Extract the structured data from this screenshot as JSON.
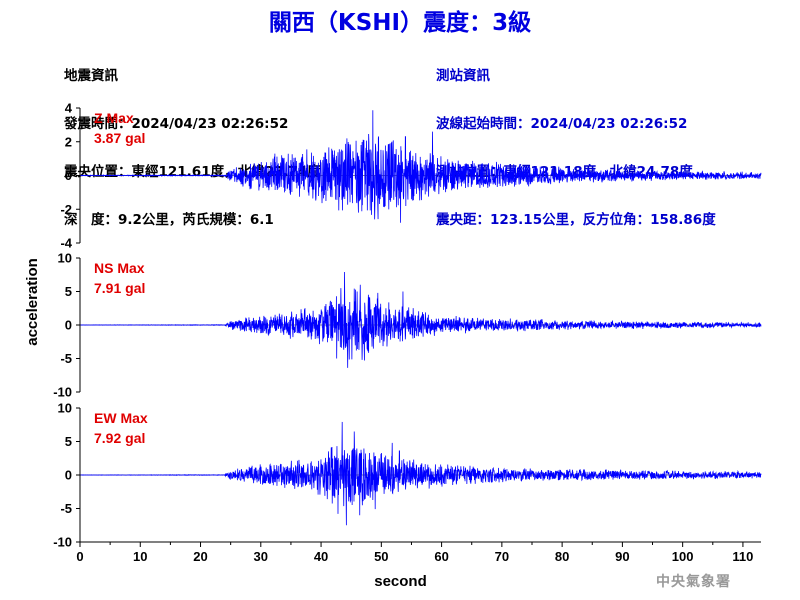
{
  "header": {
    "title": "關西（KSHI）震度：3級"
  },
  "quake_info": {
    "heading": "地震資訊",
    "time": "發震時間：2024/04/23 02:26:52",
    "epicenter": "震央位置：東經121.61度，北緯23.74度",
    "depth_mag": "深　度：9.2公里，芮氏規模：6.1"
  },
  "station_info": {
    "heading": "測站資訊",
    "wave_start": "波線起始時間：2024/04/23 02:26:52",
    "location": "測站位置：東經121.18度，北緯24.78度",
    "distance": "震央距：123.15公里，反方位角：158.86度"
  },
  "footer": {
    "agency": "中央氣象署"
  },
  "colors": {
    "title": "#0000e0",
    "trace": "#0000ff",
    "max_label": "#e00000"
  },
  "chart_data": {
    "type": "line",
    "xlabel": "second",
    "ylabel": "acceleration",
    "xlim": [
      0,
      113
    ],
    "x_ticks": [
      0,
      10,
      20,
      30,
      40,
      50,
      60,
      70,
      80,
      90,
      100,
      110
    ],
    "grid": false,
    "panels": [
      {
        "component": "Z",
        "max_label": "Z Max",
        "max_value": "3.87 gal",
        "peak": 3.87,
        "ylim": [
          -4,
          4
        ],
        "y_ticks": [
          -4,
          -2,
          0,
          2,
          4
        ],
        "envelope": [
          [
            0,
            0.02
          ],
          [
            24,
            0.03
          ],
          [
            25,
            0.35
          ],
          [
            30,
            0.9
          ],
          [
            35,
            1.3
          ],
          [
            40,
            1.5
          ],
          [
            44,
            2.0
          ],
          [
            48,
            2.4
          ],
          [
            52,
            1.9
          ],
          [
            56,
            1.5
          ],
          [
            60,
            1.0
          ],
          [
            70,
            0.7
          ],
          [
            80,
            0.45
          ],
          [
            90,
            0.32
          ],
          [
            100,
            0.25
          ],
          [
            113,
            0.18
          ]
        ],
        "spikes": [
          [
            44.3,
            2.2
          ],
          [
            48.6,
            3.87
          ],
          [
            48.9,
            -2.6
          ],
          [
            53.2,
            -2.8
          ],
          [
            54.0,
            2.3
          ],
          [
            58.5,
            2.6
          ],
          [
            46.2,
            -2.2
          ]
        ]
      },
      {
        "component": "NS",
        "max_label": "NS Max",
        "max_value": "7.91 gal",
        "peak": 7.91,
        "ylim": [
          -10,
          10
        ],
        "y_ticks": [
          -10,
          -5,
          0,
          5,
          10
        ],
        "envelope": [
          [
            0,
            0.02
          ],
          [
            24,
            0.05
          ],
          [
            25,
            0.6
          ],
          [
            30,
            1.4
          ],
          [
            35,
            1.8
          ],
          [
            40,
            2.6
          ],
          [
            43,
            4.2
          ],
          [
            46,
            5.2
          ],
          [
            49,
            4.0
          ],
          [
            52,
            3.0
          ],
          [
            56,
            2.2
          ],
          [
            60,
            1.3
          ],
          [
            70,
            0.9
          ],
          [
            80,
            0.65
          ],
          [
            90,
            0.55
          ],
          [
            100,
            0.45
          ],
          [
            113,
            0.35
          ]
        ],
        "spikes": [
          [
            42.6,
            -5.0
          ],
          [
            43.3,
            5.5
          ],
          [
            43.9,
            7.91
          ],
          [
            44.4,
            -6.4
          ],
          [
            46.5,
            6.0
          ],
          [
            47.2,
            -5.3
          ],
          [
            49.4,
            4.8
          ],
          [
            53.6,
            5.0
          ]
        ]
      },
      {
        "component": "EW",
        "max_label": "EW Max",
        "max_value": "7.92 gal",
        "peak": 7.92,
        "ylim": [
          -10,
          10
        ],
        "y_ticks": [
          -10,
          -5,
          0,
          5,
          10
        ],
        "envelope": [
          [
            0,
            0.02
          ],
          [
            24,
            0.05
          ],
          [
            25,
            0.7
          ],
          [
            30,
            1.5
          ],
          [
            35,
            1.9
          ],
          [
            40,
            2.6
          ],
          [
            43,
            4.6
          ],
          [
            46,
            4.5
          ],
          [
            49,
            3.8
          ],
          [
            52,
            2.8
          ],
          [
            56,
            2.2
          ],
          [
            60,
            1.5
          ],
          [
            70,
            1.1
          ],
          [
            80,
            0.8
          ],
          [
            90,
            0.7
          ],
          [
            100,
            0.55
          ],
          [
            113,
            0.45
          ]
        ],
        "spikes": [
          [
            42.8,
            -5.8
          ],
          [
            43.5,
            7.92
          ],
          [
            44.2,
            -7.5
          ],
          [
            45.5,
            6.5
          ],
          [
            46.4,
            -6.0
          ],
          [
            49.0,
            -5.1
          ],
          [
            51.8,
            4.8
          ],
          [
            53.0,
            3.6
          ]
        ]
      }
    ]
  }
}
